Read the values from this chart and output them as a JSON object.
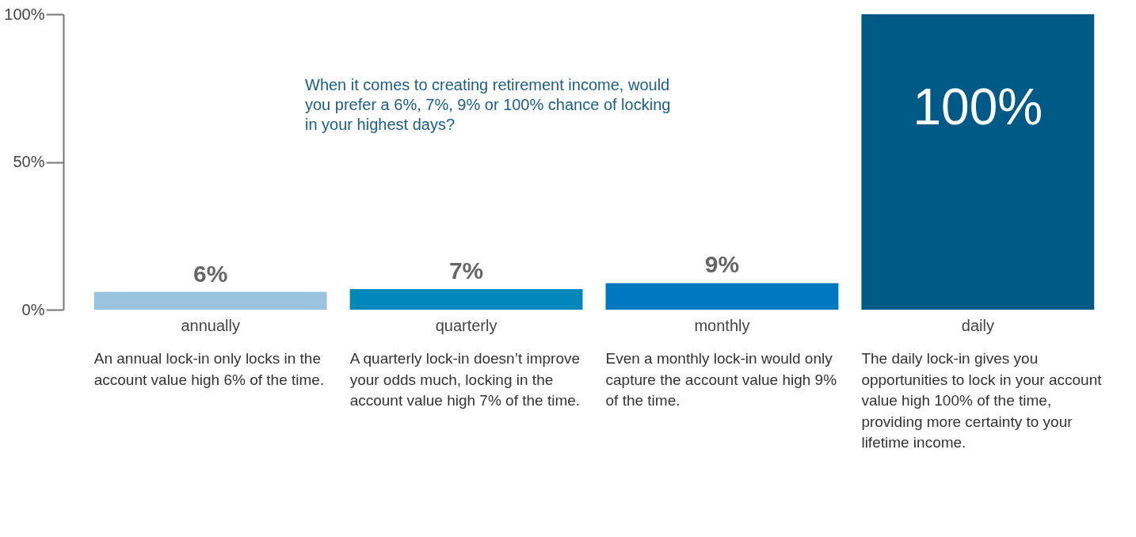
{
  "chart_data": {
    "type": "bar",
    "categories": [
      "annually",
      "quarterly",
      "monthly",
      "daily"
    ],
    "values": [
      6,
      7,
      9,
      100
    ],
    "colors": [
      "#9ac3df",
      "#0088bb",
      "#0078c1",
      "#005a87"
    ],
    "value_labels": [
      "6%",
      "7%",
      "9%",
      "100%"
    ],
    "ylim": [
      0,
      100
    ],
    "yticks": [
      {
        "value": 0,
        "label": "0%"
      },
      {
        "value": 50,
        "label": "50%"
      },
      {
        "value": 100,
        "label": "100%"
      }
    ],
    "annotations": [
      "When it comes to creating retirement income, would you prefer a 6%, 7%, 9% or 100% chance of locking in your highest days?",
      "An annual lock-in only locks in the account value high 6% of the time.",
      "A quarterly lock-in doesn’t improve your odds much, locking in the account value high 7% of the time.",
      "Even a monthly lock-in would only capture the account value high 9% of the time.",
      "The daily lock-in gives you opportunities to lock in your account value high 100% of the time, providing more certainty to your lifetime income."
    ]
  }
}
